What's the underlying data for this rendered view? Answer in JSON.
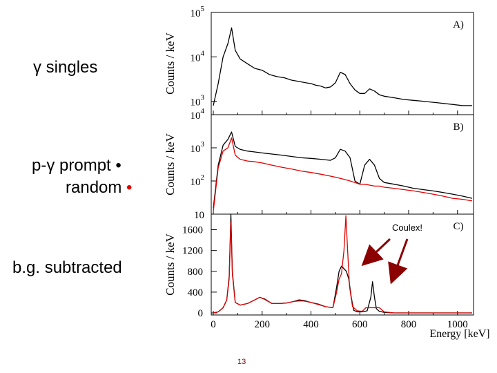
{
  "labels": {
    "singles": "γ singles",
    "prompt": "p-γ prompt",
    "random": "random",
    "bg_subtracted": "b.g. subtracted"
  },
  "slide_number": "13",
  "colors": {
    "prompt": "#000000",
    "random": "#e00000",
    "arrow": "#8b0000"
  },
  "chart_data": [
    {
      "type": "line",
      "panel": "A)",
      "ylabel": "Counts / keV",
      "yscale": "log",
      "ylim": [
        500,
        100000
      ],
      "y_ticks": [
        {
          "value": 100000,
          "base": "10",
          "exp": "5"
        },
        {
          "value": 10000,
          "base": "10",
          "exp": "4"
        },
        {
          "value": 1000,
          "base": "10",
          "exp": "3"
        }
      ],
      "xlim": [
        0,
        1060
      ],
      "series": [
        {
          "name": "γ singles",
          "color": "#000000",
          "x": [
            0,
            20,
            40,
            60,
            75,
            90,
            110,
            140,
            170,
            200,
            230,
            260,
            290,
            320,
            350,
            380,
            400,
            420,
            440,
            460,
            480,
            500,
            520,
            540,
            560,
            580,
            600,
            620,
            640,
            660,
            680,
            700,
            740,
            780,
            820,
            860,
            900,
            940,
            980,
            1020,
            1060
          ],
          "y": [
            800,
            2500,
            10000,
            20000,
            45000,
            14000,
            9000,
            7000,
            5500,
            5000,
            4000,
            3600,
            3400,
            3000,
            2800,
            2600,
            2500,
            2300,
            2200,
            2000,
            2100,
            2600,
            4500,
            4000,
            2500,
            1800,
            1500,
            1500,
            1900,
            1700,
            1400,
            1300,
            1200,
            1100,
            1050,
            1000,
            950,
            900,
            850,
            800,
            800
          ]
        }
      ]
    },
    {
      "type": "line",
      "panel": "B)",
      "ylabel": "Counts / keV",
      "yscale": "log",
      "ylim": [
        10,
        10000
      ],
      "y_ticks": [
        {
          "value": 10000,
          "base": "10",
          "exp": "4"
        },
        {
          "value": 1000,
          "base": "10",
          "exp": "3"
        },
        {
          "value": 100,
          "base": "10",
          "exp": "2"
        },
        {
          "value": 10,
          "base": "10",
          "exp": ""
        }
      ],
      "xlim": [
        0,
        1060
      ],
      "series": [
        {
          "name": "p-γ prompt",
          "color": "#000000",
          "x": [
            0,
            20,
            40,
            60,
            75,
            90,
            110,
            140,
            170,
            200,
            240,
            280,
            320,
            360,
            400,
            440,
            480,
            500,
            520,
            540,
            560,
            580,
            600,
            620,
            640,
            660,
            680,
            700,
            740,
            780,
            820,
            860,
            900,
            940,
            980,
            1020,
            1060
          ],
          "y": [
            15,
            300,
            1200,
            1800,
            3000,
            1100,
            900,
            800,
            750,
            700,
            650,
            600,
            550,
            500,
            480,
            450,
            420,
            500,
            900,
            800,
            500,
            100,
            80,
            300,
            450,
            300,
            120,
            90,
            80,
            70,
            60,
            55,
            50,
            45,
            40,
            35,
            30
          ]
        },
        {
          "name": "random",
          "color": "#e00000",
          "x": [
            0,
            20,
            40,
            60,
            75,
            90,
            110,
            140,
            170,
            200,
            240,
            280,
            320,
            360,
            400,
            440,
            480,
            500,
            520,
            540,
            560,
            580,
            600,
            620,
            640,
            660,
            680,
            700,
            740,
            780,
            820,
            860,
            900,
            940,
            980,
            1020,
            1060
          ],
          "y": [
            12,
            250,
            800,
            1000,
            2000,
            600,
            450,
            400,
            380,
            350,
            300,
            260,
            230,
            200,
            180,
            160,
            140,
            130,
            120,
            110,
            100,
            90,
            80,
            80,
            75,
            70,
            70,
            65,
            60,
            55,
            50,
            45,
            40,
            35,
            30,
            28,
            25
          ]
        }
      ]
    },
    {
      "type": "line",
      "panel": "C)",
      "ylabel": "Counts / keV",
      "xlabel": "Energy [keV]",
      "yscale": "linear",
      "ylim": [
        -40,
        1900
      ],
      "y_ticks": [
        0,
        400,
        800,
        1200,
        1600
      ],
      "x_ticks": [
        0,
        200,
        400,
        600,
        800,
        1000
      ],
      "xlim": [
        0,
        1060
      ],
      "annotation": "Coulex!",
      "series": [
        {
          "name": "b.g. subtracted (prompt)",
          "color": "#000000",
          "x": [
            0,
            20,
            40,
            55,
            65,
            72,
            78,
            90,
            110,
            140,
            170,
            190,
            210,
            240,
            270,
            300,
            330,
            350,
            370,
            400,
            430,
            460,
            490,
            505,
            515,
            525,
            535,
            545,
            555,
            565,
            575,
            590,
            610,
            630,
            645,
            652,
            660,
            668,
            680,
            700,
            740,
            800,
            900,
            1000,
            1060
          ],
          "y": [
            0,
            20,
            100,
            250,
            700,
            1900,
            800,
            200,
            150,
            180,
            250,
            300,
            270,
            180,
            180,
            190,
            220,
            250,
            240,
            200,
            170,
            120,
            100,
            500,
            800,
            900,
            850,
            800,
            650,
            300,
            50,
            20,
            20,
            40,
            300,
            600,
            300,
            80,
            30,
            10,
            0,
            0,
            0,
            0,
            0
          ]
        },
        {
          "name": "b.g. subtracted (random)",
          "color": "#e00000",
          "x": [
            0,
            20,
            40,
            55,
            65,
            72,
            78,
            90,
            110,
            140,
            170,
            190,
            210,
            240,
            270,
            300,
            330,
            350,
            370,
            400,
            430,
            460,
            490,
            505,
            515,
            525,
            535,
            543,
            550,
            558,
            570,
            590,
            610,
            625,
            640,
            660,
            680,
            690,
            700,
            740,
            800,
            900,
            1000,
            1060
          ],
          "y": [
            0,
            20,
            100,
            250,
            650,
            1750,
            750,
            200,
            150,
            180,
            250,
            300,
            260,
            180,
            180,
            190,
            220,
            230,
            230,
            200,
            160,
            120,
            100,
            400,
            650,
            750,
            1200,
            1870,
            1200,
            500,
            120,
            40,
            30,
            100,
            100,
            100,
            100,
            60,
            20,
            0,
            0,
            0,
            0,
            0
          ]
        }
      ]
    }
  ]
}
